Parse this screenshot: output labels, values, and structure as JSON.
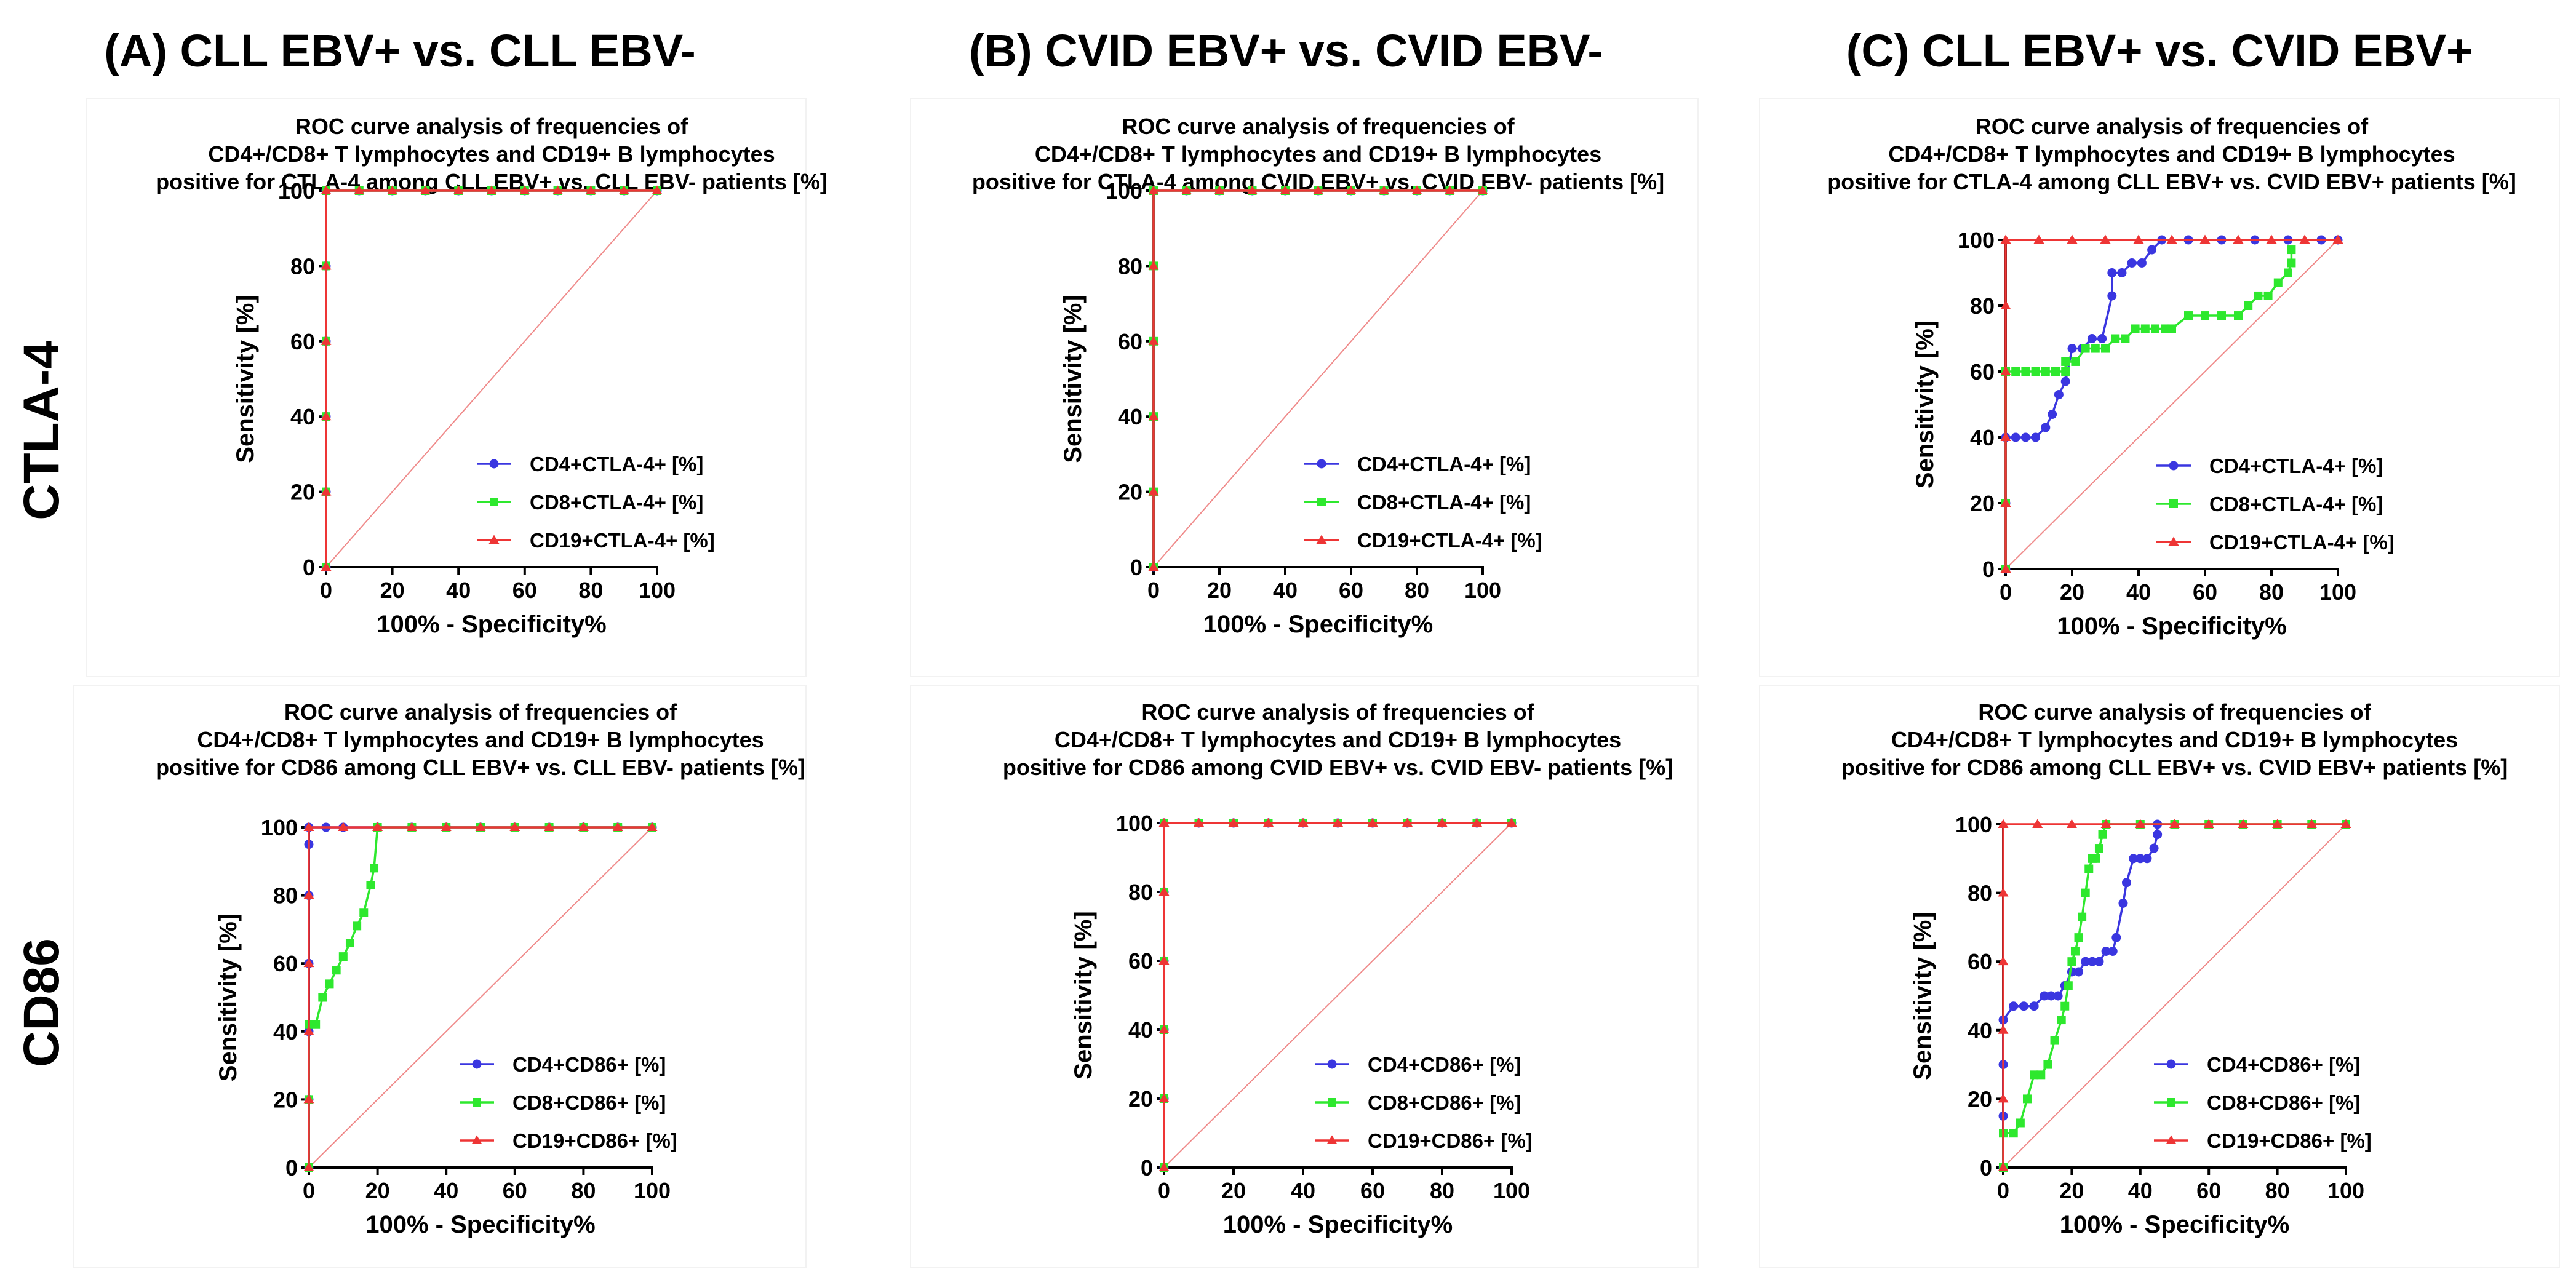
{
  "column_headers": [
    "(A) CLL EBV+ vs. CLL EBV-",
    "(B) CVID EBV+ vs. CVID EBV-",
    "(C) CLL EBV+ vs. CVID EBV+"
  ],
  "row_labels": [
    "CTLA-4",
    "CD86"
  ],
  "colors": {
    "cd4": "#3a36e0",
    "cd8": "#2ee82e",
    "cd19": "#ee3535",
    "reference": "#ef8a8a",
    "axis": "#000000"
  },
  "chart_data": [
    {
      "type": "line",
      "title": [
        "ROC curve analysis of frequencies of",
        "CD4+/CD8+ T lymphocytes and CD19+ B lymphocytes",
        "positive for CTLA-4 among CLL EBV+ vs. CLL EBV- patients [%]"
      ],
      "xlabel": "100% - Specificity%",
      "ylabel": "Sensitivity [%]",
      "xlim": [
        0,
        100
      ],
      "ylim": [
        0,
        100
      ],
      "xticks": [
        0,
        20,
        40,
        60,
        80,
        100
      ],
      "yticks": [
        0,
        20,
        40,
        60,
        80,
        100
      ],
      "series": [
        {
          "name": "CD4+CTLA-4+ [%]",
          "color_key": "cd4",
          "marker": "circle",
          "x": [
            0,
            0,
            0,
            0,
            0,
            0,
            10,
            20,
            30,
            40,
            50,
            60,
            70,
            80,
            90,
            100
          ],
          "y": [
            0,
            20,
            40,
            60,
            80,
            100,
            100,
            100,
            100,
            100,
            100,
            100,
            100,
            100,
            100,
            100
          ]
        },
        {
          "name": "CD8+CTLA-4+ [%]",
          "color_key": "cd8",
          "marker": "square",
          "x": [
            0,
            0,
            0,
            0,
            0,
            0,
            10,
            20,
            30,
            40,
            50,
            60,
            70,
            80,
            90,
            100
          ],
          "y": [
            0,
            20,
            40,
            60,
            80,
            100,
            100,
            100,
            100,
            100,
            100,
            100,
            100,
            100,
            100,
            100
          ]
        },
        {
          "name": "CD19+CTLA-4+ [%]",
          "color_key": "cd19",
          "marker": "triangle",
          "x": [
            0,
            0,
            0,
            0,
            0,
            0,
            10,
            20,
            30,
            40,
            50,
            60,
            70,
            80,
            90,
            100
          ],
          "y": [
            0,
            20,
            40,
            60,
            80,
            100,
            100,
            100,
            100,
            100,
            100,
            100,
            100,
            100,
            100,
            100
          ]
        }
      ]
    },
    {
      "type": "line",
      "title": [
        "ROC curve analysis of frequencies of",
        "CD4+/CD8+ T lymphocytes and CD19+ B lymphocytes",
        "positive for CTLA-4 among CVID EBV+ vs. CVID EBV- patients [%]"
      ],
      "xlabel": "100% - Specificity%",
      "ylabel": "Sensitivity [%]",
      "xlim": [
        0,
        100
      ],
      "ylim": [
        0,
        100
      ],
      "xticks": [
        0,
        20,
        40,
        60,
        80,
        100
      ],
      "yticks": [
        0,
        20,
        40,
        60,
        80,
        100
      ],
      "series": [
        {
          "name": "CD4+CTLA-4+ [%]",
          "color_key": "cd4",
          "marker": "circle",
          "x": [
            0,
            0,
            0,
            0,
            0,
            0,
            10,
            20,
            30,
            40,
            50,
            60,
            70,
            80,
            90,
            100
          ],
          "y": [
            0,
            20,
            40,
            60,
            80,
            100,
            100,
            100,
            100,
            100,
            100,
            100,
            100,
            100,
            100,
            100
          ]
        },
        {
          "name": "CD8+CTLA-4+ [%]",
          "color_key": "cd8",
          "marker": "square",
          "x": [
            0,
            0,
            0,
            0,
            0,
            0,
            10,
            20,
            30,
            40,
            50,
            60,
            70,
            80,
            90,
            100
          ],
          "y": [
            0,
            20,
            40,
            60,
            80,
            100,
            100,
            100,
            100,
            100,
            100,
            100,
            100,
            100,
            100,
            100
          ]
        },
        {
          "name": "CD19+CTLA-4+ [%]",
          "color_key": "cd19",
          "marker": "triangle",
          "x": [
            0,
            0,
            0,
            0,
            0,
            0,
            10,
            20,
            30,
            40,
            50,
            60,
            70,
            80,
            90,
            100
          ],
          "y": [
            0,
            20,
            40,
            60,
            80,
            100,
            100,
            100,
            100,
            100,
            100,
            100,
            100,
            100,
            100,
            100
          ]
        }
      ]
    },
    {
      "type": "line",
      "title": [
        "ROC curve analysis of frequencies of",
        "CD4+/CD8+ T lymphocytes and CD19+ B lymphocytes",
        "positive for CTLA-4 among CLL EBV+ vs. CVID EBV+ patients [%]"
      ],
      "xlabel": "100% - Specificity%",
      "ylabel": "Sensitivity [%]",
      "xlim": [
        0,
        100
      ],
      "ylim": [
        0,
        100
      ],
      "xticks": [
        0,
        20,
        40,
        60,
        80,
        100
      ],
      "yticks": [
        0,
        20,
        40,
        60,
        80,
        100
      ],
      "series": [
        {
          "name": "CD4+CTLA-4+ [%]",
          "color_key": "cd4",
          "marker": "circle",
          "x": [
            0,
            0,
            0,
            3,
            6,
            9,
            12,
            14,
            16,
            18,
            20,
            23,
            26,
            29,
            32,
            32,
            35,
            38,
            41,
            44,
            47,
            55,
            65,
            75,
            85,
            95,
            100
          ],
          "y": [
            0,
            20,
            40,
            40,
            40,
            40,
            43,
            47,
            53,
            57,
            67,
            67,
            70,
            70,
            83,
            90,
            90,
            93,
            93,
            97,
            100,
            100,
            100,
            100,
            100,
            100,
            100
          ]
        },
        {
          "name": "CD8+CTLA-4+ [%]",
          "color_key": "cd8",
          "marker": "square",
          "x": [
            0,
            0,
            0,
            3,
            6,
            9,
            12,
            15,
            18,
            18,
            21,
            24,
            27,
            30,
            33,
            36,
            39,
            42,
            45,
            48,
            50,
            55,
            60,
            65,
            70,
            73,
            76,
            79,
            82,
            85,
            86,
            86
          ],
          "y": [
            0,
            20,
            60,
            60,
            60,
            60,
            60,
            60,
            60,
            63,
            63,
            67,
            67,
            67,
            70,
            70,
            73,
            73,
            73,
            73,
            73,
            77,
            77,
            77,
            77,
            80,
            83,
            83,
            87,
            90,
            93,
            97
          ]
        },
        {
          "name": "CD19+CTLA-4+ [%]",
          "color_key": "cd19",
          "marker": "triangle",
          "x": [
            0,
            0,
            0,
            0,
            0,
            0,
            10,
            20,
            30,
            40,
            50,
            60,
            70,
            80,
            90,
            100
          ],
          "y": [
            0,
            20,
            40,
            60,
            80,
            100,
            100,
            100,
            100,
            100,
            100,
            100,
            100,
            100,
            100,
            100
          ]
        }
      ]
    },
    {
      "type": "line",
      "title": [
        "ROC curve analysis of frequencies of",
        "CD4+/CD8+ T lymphocytes and CD19+ B lymphocytes",
        "positive for CD86 among CLL EBV+ vs. CLL EBV- patients [%]"
      ],
      "xlabel": "100% - Specificity%",
      "ylabel": "Sensitivity [%]",
      "xlim": [
        0,
        100
      ],
      "ylim": [
        0,
        100
      ],
      "xticks": [
        0,
        20,
        40,
        60,
        80,
        100
      ],
      "yticks": [
        0,
        20,
        40,
        60,
        80,
        100
      ],
      "series": [
        {
          "name": "CD4+CD86+ [%]",
          "color_key": "cd4",
          "marker": "circle",
          "x": [
            0,
            0,
            0,
            0,
            0,
            0,
            0,
            5,
            10,
            20,
            30,
            40,
            50,
            60,
            70,
            80,
            90,
            100
          ],
          "y": [
            0,
            20,
            40,
            60,
            80,
            95,
            100,
            100,
            100,
            100,
            100,
            100,
            100,
            100,
            100,
            100,
            100,
            100
          ]
        },
        {
          "name": "CD8+CD86+ [%]",
          "color_key": "cd8",
          "marker": "square",
          "x": [
            0,
            0,
            0,
            2,
            4,
            6,
            8,
            10,
            12,
            14,
            16,
            18,
            19,
            20,
            30,
            40,
            50,
            60,
            70,
            80,
            90,
            100
          ],
          "y": [
            0,
            20,
            42,
            42,
            50,
            54,
            58,
            62,
            66,
            71,
            75,
            83,
            88,
            100,
            100,
            100,
            100,
            100,
            100,
            100,
            100,
            100
          ]
        },
        {
          "name": "CD19+CD86+ [%]",
          "color_key": "cd19",
          "marker": "triangle",
          "x": [
            0,
            0,
            0,
            0,
            0,
            0,
            10,
            20,
            30,
            40,
            50,
            60,
            70,
            80,
            90,
            100
          ],
          "y": [
            0,
            20,
            40,
            60,
            80,
            100,
            100,
            100,
            100,
            100,
            100,
            100,
            100,
            100,
            100,
            100
          ]
        }
      ]
    },
    {
      "type": "line",
      "title": [
        "ROC curve analysis of frequencies of",
        "CD4+/CD8+ T lymphocytes and CD19+ B lymphocytes",
        "positive for CD86 among CVID EBV+ vs. CVID EBV- patients [%]"
      ],
      "xlabel": "100% - Specificity%",
      "ylabel": "Sensitivity [%]",
      "xlim": [
        0,
        100
      ],
      "ylim": [
        0,
        100
      ],
      "xticks": [
        0,
        20,
        40,
        60,
        80,
        100
      ],
      "yticks": [
        0,
        20,
        40,
        60,
        80,
        100
      ],
      "series": [
        {
          "name": "CD4+CD86+ [%]",
          "color_key": "cd4",
          "marker": "circle",
          "x": [
            0,
            0,
            0,
            0,
            0,
            0,
            10,
            20,
            30,
            40,
            50,
            60,
            70,
            80,
            90,
            100
          ],
          "y": [
            0,
            20,
            40,
            60,
            80,
            100,
            100,
            100,
            100,
            100,
            100,
            100,
            100,
            100,
            100,
            100
          ]
        },
        {
          "name": "CD8+CD86+ [%]",
          "color_key": "cd8",
          "marker": "square",
          "x": [
            0,
            0,
            0,
            0,
            0,
            0,
            10,
            20,
            30,
            40,
            50,
            60,
            70,
            80,
            90,
            100
          ],
          "y": [
            0,
            20,
            40,
            60,
            80,
            100,
            100,
            100,
            100,
            100,
            100,
            100,
            100,
            100,
            100,
            100
          ]
        },
        {
          "name": "CD19+CD86+ [%]",
          "color_key": "cd19",
          "marker": "triangle",
          "x": [
            0,
            0,
            0,
            0,
            0,
            0,
            10,
            20,
            30,
            40,
            50,
            60,
            70,
            80,
            90,
            100
          ],
          "y": [
            0,
            20,
            40,
            60,
            80,
            100,
            100,
            100,
            100,
            100,
            100,
            100,
            100,
            100,
            100,
            100
          ]
        }
      ]
    },
    {
      "type": "line",
      "title": [
        "ROC curve analysis of frequencies of",
        "CD4+/CD8+ T lymphocytes and CD19+ B lymphocytes",
        "positive for CD86 among CLL EBV+ vs. CVID EBV+ patients [%]"
      ],
      "xlabel": "100% - Specificity%",
      "ylabel": "Sensitivity [%]",
      "xlim": [
        0,
        100
      ],
      "ylim": [
        0,
        100
      ],
      "xticks": [
        0,
        20,
        40,
        60,
        80,
        100
      ],
      "yticks": [
        0,
        20,
        40,
        60,
        80,
        100
      ],
      "series": [
        {
          "name": "CD4+CD86+ [%]",
          "color_key": "cd4",
          "marker": "circle",
          "x": [
            0,
            0,
            0,
            0,
            3,
            6,
            9,
            12,
            14,
            16,
            18,
            20,
            22,
            24,
            26,
            28,
            30,
            32,
            33,
            35,
            36,
            38,
            40,
            42,
            44,
            45,
            45
          ],
          "y": [
            0,
            15,
            30,
            43,
            47,
            47,
            47,
            50,
            50,
            50,
            53,
            57,
            57,
            60,
            60,
            60,
            63,
            63,
            67,
            77,
            83,
            90,
            90,
            90,
            93,
            97,
            100
          ]
        },
        {
          "name": "CD8+CD86+ [%]",
          "color_key": "cd8",
          "marker": "square",
          "x": [
            0,
            0,
            3,
            5,
            7,
            9,
            11,
            13,
            15,
            17,
            18,
            19,
            20,
            21,
            22,
            23,
            24,
            25,
            26,
            27,
            28,
            29,
            30,
            40,
            50,
            60,
            70,
            80,
            90,
            100
          ],
          "y": [
            0,
            10,
            10,
            13,
            20,
            27,
            27,
            30,
            37,
            43,
            47,
            53,
            60,
            63,
            67,
            73,
            80,
            87,
            90,
            90,
            93,
            97,
            100,
            100,
            100,
            100,
            100,
            100,
            100,
            100
          ]
        },
        {
          "name": "CD19+CD86+ [%]",
          "color_key": "cd19",
          "marker": "triangle",
          "x": [
            0,
            0,
            0,
            0,
            0,
            0,
            10,
            20,
            30,
            40,
            50,
            60,
            70,
            80,
            90,
            100
          ],
          "y": [
            0,
            20,
            40,
            60,
            80,
            100,
            100,
            100,
            100,
            100,
            100,
            100,
            100,
            100,
            100,
            100
          ]
        }
      ]
    }
  ]
}
